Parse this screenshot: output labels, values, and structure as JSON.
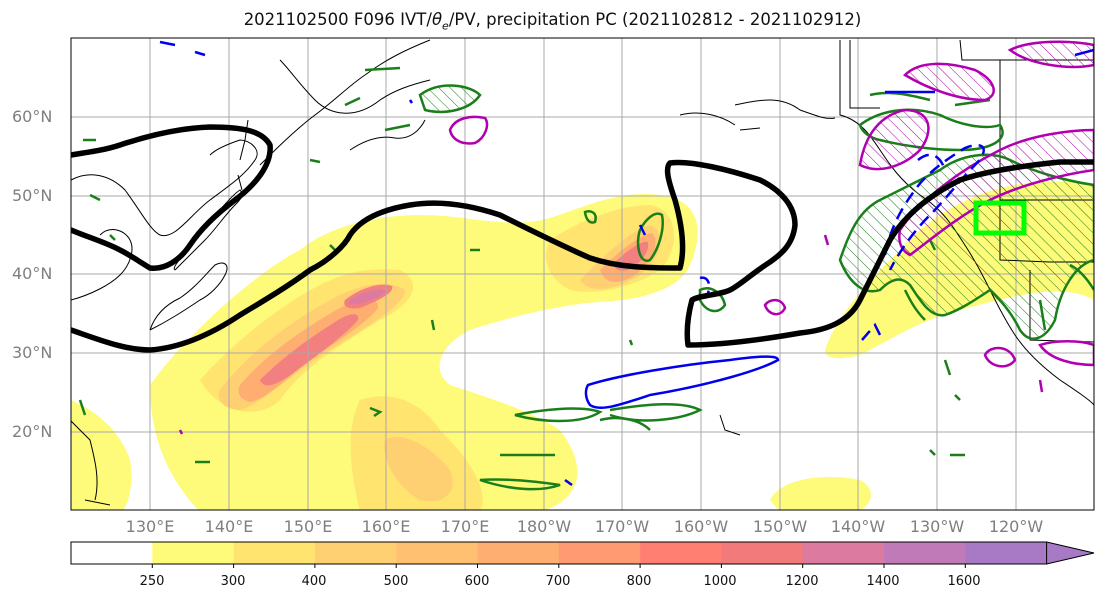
{
  "title": {
    "prefix": "2021102500 F096 IVT/",
    "theta": "θ",
    "theta_sub": "e",
    "suffix": "/PV, precipitation PC (2021102812 - 2021102912)"
  },
  "map": {
    "lat_labels": [
      "60°N",
      "50°N",
      "40°N",
      "30°N",
      "20°N"
    ],
    "lon_labels": [
      "130°E",
      "140°E",
      "150°E",
      "160°E",
      "170°E",
      "180°W",
      "170°W",
      "160°W",
      "150°W",
      "140°W",
      "130°W",
      "120°W"
    ],
    "lon_extent": [
      120,
      250
    ],
    "lat_extent": [
      10,
      70
    ],
    "grid": true
  },
  "colorbar": {
    "levels": [
      "250",
      "300",
      "400",
      "500",
      "600",
      "700",
      "800",
      "1000",
      "1200",
      "1400",
      "1600"
    ],
    "colors": [
      "#ffffff",
      "#fffb7a",
      "#ffe46f",
      "#ffd072",
      "#ffc072",
      "#ffae72",
      "#ff9a72",
      "#ff8072",
      "#f27a7a",
      "#dc7aa0",
      "#c07ab8",
      "#a87ac6"
    ]
  },
  "colors": {
    "jet_contour": "#000000",
    "theta_e": "#1a7f1a",
    "pv_positive": "#b000b0",
    "pv_negative": "#0000ee",
    "target_box": "#00ff00",
    "grid": "#a9a9a9"
  }
}
